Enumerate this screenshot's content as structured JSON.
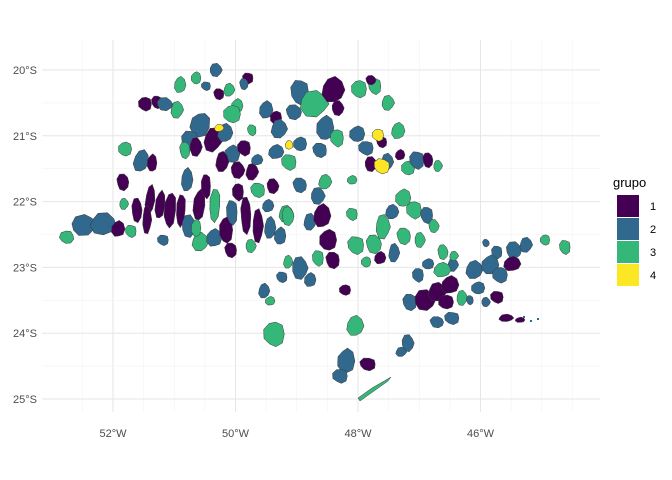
{
  "chart_data": {
    "type": "map",
    "x_ticks": [
      "52°W",
      "50°W",
      "48°W",
      "46°W"
    ],
    "y_ticks": [
      "20°S",
      "21°S",
      "22°S",
      "23°S",
      "24°S",
      "25°S"
    ],
    "xlim": [
      -53.0,
      -44.0
    ],
    "ylim": [
      -25.3,
      -19.6
    ],
    "grid": true,
    "legend": {
      "title": "grupo",
      "position": "right",
      "items": [
        {
          "label": "1",
          "color": "#440154"
        },
        {
          "label": "2",
          "color": "#31688E"
        },
        {
          "label": "3",
          "color": "#35B779"
        },
        {
          "label": "4",
          "color": "#FDE725"
        }
      ]
    }
  }
}
